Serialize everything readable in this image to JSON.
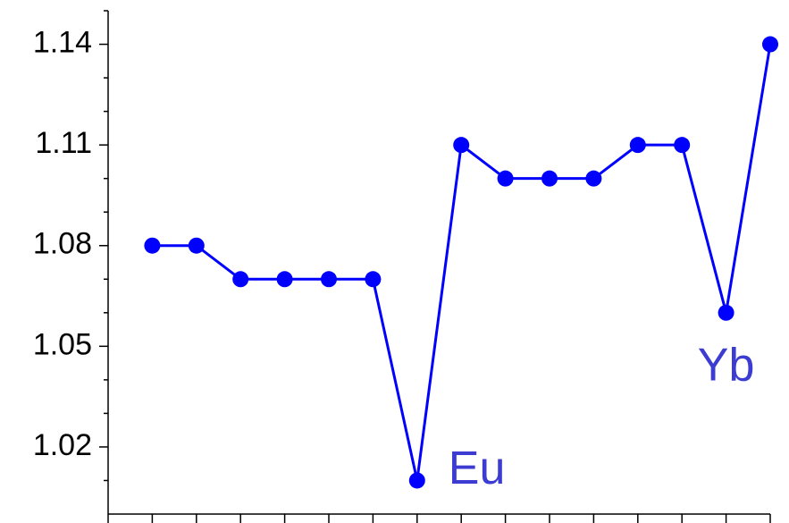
{
  "chart_data": {
    "type": "line",
    "x": [
      1,
      2,
      3,
      4,
      5,
      6,
      7,
      8,
      9,
      10,
      11,
      12,
      13,
      14,
      15
    ],
    "values": [
      1.08,
      1.08,
      1.07,
      1.07,
      1.07,
      1.07,
      1.01,
      1.11,
      1.1,
      1.1,
      1.1,
      1.11,
      1.11,
      1.06,
      1.14
    ],
    "color": "#0000ff",
    "xlim": [
      0,
      15
    ],
    "xticks": [
      0,
      1,
      2,
      3,
      4,
      5,
      6,
      7,
      8,
      9,
      10,
      11,
      12,
      13,
      14,
      15
    ],
    "ylim": [
      1.0,
      1.15
    ],
    "yticks": [
      1.02,
      1.05,
      1.08,
      1.11,
      1.14
    ],
    "yminorticks": [
      1.01,
      1.03,
      1.04,
      1.06,
      1.07,
      1.09,
      1.1,
      1.12,
      1.13,
      1.15
    ],
    "grid": false,
    "annotations": [
      {
        "text": "Eu",
        "x": 7
      },
      {
        "text": "Yb",
        "x": 14
      }
    ],
    "annotation_color": "#3c3cd2"
  }
}
